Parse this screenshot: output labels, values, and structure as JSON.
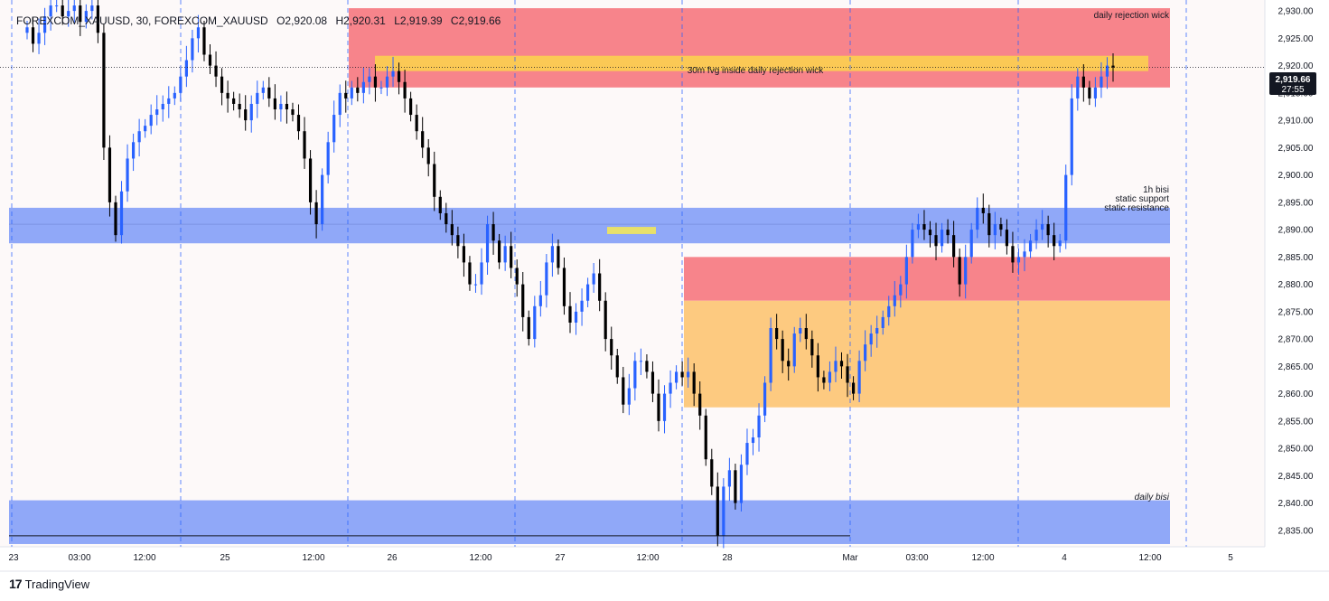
{
  "header": {
    "symbol": "FOREXCOM_XAUUSD, 30, FOREXCOM_XAUUSD",
    "open": "O2,920.08",
    "high": "H2,920.31",
    "low": "L2,919.39",
    "close": "C2,919.66"
  },
  "branding": {
    "name": "TradingView",
    "logo_text": "17"
  },
  "price_label": {
    "price": "2,919.66",
    "countdown": "27:55"
  },
  "colors": {
    "up": "#2962ff",
    "down": "#000000",
    "red_zone": "#f7848b",
    "orange_zone": "#fdca80",
    "blue_zone": "#90a8f8",
    "yellow_zone": "#fbc955",
    "yellow_small": "#e8e06a",
    "bg": "#fdf9f9"
  },
  "chart_data": {
    "type": "candlestick",
    "timeframe": "30",
    "ylim": [
      2832,
      2932
    ],
    "y_ticks": [
      2835,
      2840,
      2845,
      2850,
      2855,
      2860,
      2865,
      2870,
      2875,
      2880,
      2885,
      2890,
      2895,
      2900,
      2905,
      2910,
      2915,
      2920,
      2925,
      2930
    ],
    "y_tick_labels": [
      "2,835.00",
      "2,840.00",
      "2,845.00",
      "2,850.00",
      "2,855.00",
      "2,860.00",
      "2,865.00",
      "2,870.00",
      "2,875.00",
      "2,880.00",
      "2,885.00",
      "2,890.00",
      "2,895.00",
      "2,900.00",
      "2,905.00",
      "2,910.00",
      "2,915.00",
      "2,920.00",
      "2,925.00",
      "2,930.00"
    ],
    "x_ticks": [
      "23",
      "03:00",
      "12:00",
      "25",
      "12:00",
      "26",
      "12:00",
      "27",
      "12:00",
      "28",
      "Mar",
      "03:00",
      "12:00",
      "4",
      "12:00",
      "5"
    ],
    "last_price": 2919.66,
    "zones": [
      {
        "label": "daily rejection wick",
        "color": "red",
        "low": 2916,
        "high": 2930.5
      },
      {
        "label": "30m fvg inside daily rejection wick",
        "color": "yellow",
        "low": 2919,
        "high": 2921.8
      },
      {
        "label": "",
        "color": "red",
        "low": 2877,
        "high": 2885
      },
      {
        "label": "",
        "color": "orange",
        "low": 2857.5,
        "high": 2877
      },
      {
        "label": "",
        "color": "blue",
        "low": 2887.5,
        "high": 2894
      },
      {
        "label": "",
        "color": "yellow_small",
        "low": 2889.2,
        "high": 2890.5
      },
      {
        "label": "daily bisi",
        "color": "blue",
        "low": 2832.5,
        "high": 2840.5
      }
    ],
    "annotations": [
      "daily rejection wick",
      "30m fvg inside daily rejection wick",
      "1h bisi",
      "static support",
      "static resistance",
      "daily bisi"
    ],
    "series_close": [
      2927,
      2924,
      2926,
      2929,
      2931,
      2931,
      2929,
      2930,
      2931,
      2928,
      2930,
      2931,
      2926,
      2905,
      2895,
      2889,
      2897,
      2903,
      2906,
      2908,
      2909,
      2911,
      2912,
      2913,
      2914,
      2915,
      2918,
      2921,
      2925,
      2927,
      2922,
      2920,
      2918,
      2915,
      2914,
      2913,
      2912,
      2910,
      2913,
      2915,
      2916,
      2914,
      2912,
      2913,
      2912,
      2911,
      2908,
      2903,
      2895,
      2891,
      2900,
      2906,
      2911,
      2915,
      2914,
      2916,
      2915,
      2917,
      2918,
      2916,
      2916,
      2918,
      2919,
      2917,
      2914,
      2911,
      2908,
      2905,
      2902,
      2896,
      2893,
      2891,
      2889,
      2887,
      2884,
      2880,
      2880,
      2884,
      2891,
      2888,
      2884,
      2887,
      2883,
      2880,
      2874,
      2870,
      2876,
      2878,
      2884,
      2887,
      2883,
      2876,
      2873,
      2875,
      2877,
      2880,
      2882,
      2877,
      2870,
      2867,
      2863,
      2858,
      2861,
      2866,
      2866,
      2864,
      2860,
      2855,
      2860,
      2862,
      2864,
      2863,
      2864,
      2860,
      2856,
      2848,
      2843,
      2834,
      2843,
      2846,
      2840,
      2847,
      2851,
      2852,
      2856,
      2862,
      2872,
      2870,
      2866,
      2865,
      2871,
      2872,
      2870,
      2867,
      2863,
      2862,
      2864,
      2866,
      2865,
      2862,
      2860,
      2866,
      2869,
      2871,
      2872,
      2874,
      2876,
      2878,
      2880,
      2885,
      2890,
      2891,
      2890,
      2889,
      2887,
      2890,
      2889,
      2885,
      2880,
      2885,
      2890,
      2894,
      2893,
      2889,
      2891,
      2890,
      2887,
      2884,
      2885,
      2886,
      2888,
      2890,
      2891,
      2889,
      2887,
      2888,
      2900,
      2914,
      2918,
      2916,
      2914,
      2916,
      2918,
      2920,
      2919.66
    ]
  }
}
